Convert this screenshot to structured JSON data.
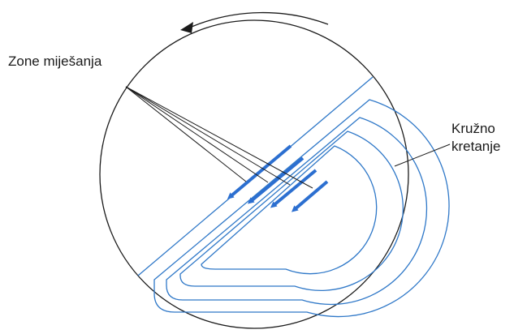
{
  "labels": {
    "mixing_zones": "Zone miješanja",
    "circular_motion_line1": "Kružno",
    "circular_motion_line2": "kretanje"
  },
  "colors": {
    "background": "#ffffff",
    "outline": "#1a1a1a",
    "flow_line": "#2f78c8",
    "mixing_arrow": "#2c6fd0"
  },
  "icons": {
    "rotation_arrow": "counterclockwise-arrow-icon",
    "mixing_arrows": "arrow-down-left-icon"
  }
}
